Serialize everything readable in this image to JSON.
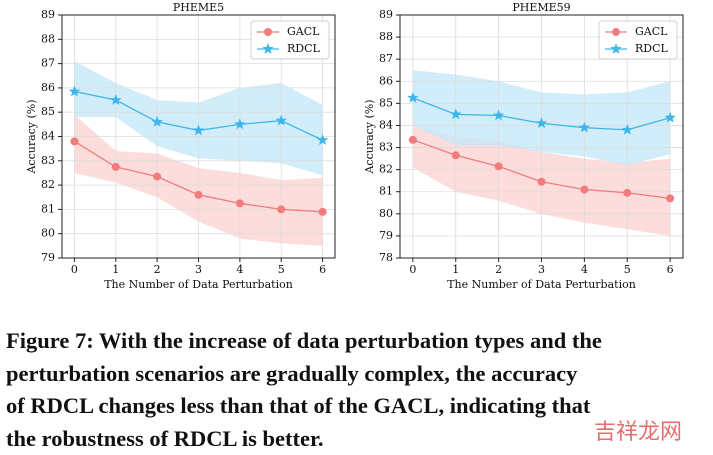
{
  "chart_data": [
    {
      "type": "line",
      "title": "PHEME5",
      "x_label": "The Number of Data Perturbation",
      "y_label": "Accuracy (%)",
      "x": [
        0,
        1,
        2,
        3,
        4,
        5,
        6
      ],
      "xlim": [
        -0.3,
        6.3
      ],
      "xticks": [
        0,
        1,
        2,
        3,
        4,
        5,
        6
      ],
      "ylim": [
        79,
        89
      ],
      "yticks": [
        79,
        80,
        81,
        82,
        83,
        84,
        85,
        86,
        87,
        88,
        89
      ],
      "grid": true,
      "legend": "upper right",
      "series": [
        {
          "name": "GACL",
          "color": "#f27c7c",
          "band_color": "#fcd3d3",
          "marker": "circle",
          "values": [
            83.8,
            82.75,
            82.35,
            81.6,
            81.25,
            81.0,
            80.9
          ],
          "upper": [
            84.9,
            83.4,
            83.3,
            82.7,
            82.5,
            82.2,
            82.3
          ],
          "lower": [
            82.5,
            82.1,
            81.5,
            80.5,
            79.8,
            79.6,
            79.5
          ]
        },
        {
          "name": "RDCL",
          "color": "#3fb6ea",
          "band_color": "#c6e8f9",
          "marker": "star",
          "values": [
            85.85,
            85.5,
            84.6,
            84.25,
            84.5,
            84.65,
            83.85
          ],
          "upper": [
            87.1,
            86.2,
            85.5,
            85.4,
            86.0,
            86.2,
            85.3
          ],
          "lower": [
            84.8,
            84.8,
            83.6,
            83.1,
            83.0,
            82.9,
            82.4
          ]
        }
      ]
    },
    {
      "type": "line",
      "title": "PHEME59",
      "x_label": "The Number of Data Perturbation",
      "y_label": "Accuracy (%)",
      "x": [
        0,
        1,
        2,
        3,
        4,
        5,
        6
      ],
      "xlim": [
        -0.3,
        6.3
      ],
      "xticks": [
        0,
        1,
        2,
        3,
        4,
        5,
        6
      ],
      "ylim": [
        78,
        89
      ],
      "yticks": [
        78,
        79,
        80,
        81,
        82,
        83,
        84,
        85,
        86,
        87,
        88,
        89
      ],
      "grid": true,
      "legend": "upper right",
      "series": [
        {
          "name": "GACL",
          "color": "#f27c7c",
          "band_color": "#fcd3d3",
          "marker": "circle",
          "values": [
            83.35,
            82.65,
            82.15,
            81.45,
            81.1,
            80.95,
            80.7
          ],
          "upper": [
            84.0,
            83.5,
            83.3,
            82.8,
            82.5,
            82.3,
            82.5
          ],
          "lower": [
            82.1,
            81.0,
            80.6,
            80.0,
            79.6,
            79.3,
            79.0
          ]
        },
        {
          "name": "RDCL",
          "color": "#3fb6ea",
          "band_color": "#c6e8f9",
          "marker": "star",
          "values": [
            85.25,
            84.5,
            84.45,
            84.1,
            83.9,
            83.8,
            84.35
          ],
          "upper": [
            86.5,
            86.3,
            86.0,
            85.5,
            85.4,
            85.5,
            86.0
          ],
          "lower": [
            84.0,
            83.1,
            83.1,
            82.8,
            82.6,
            82.2,
            82.7
          ]
        }
      ]
    }
  ],
  "caption": [
    "Figure 7: With the increase of data perturbation types and the",
    "perturbation scenarios are gradually complex, the accuracy",
    "of RDCL changes less than that of the GACL, indicating that",
    "the robustness of RDCL is better."
  ],
  "watermark": "吉祥龙网"
}
